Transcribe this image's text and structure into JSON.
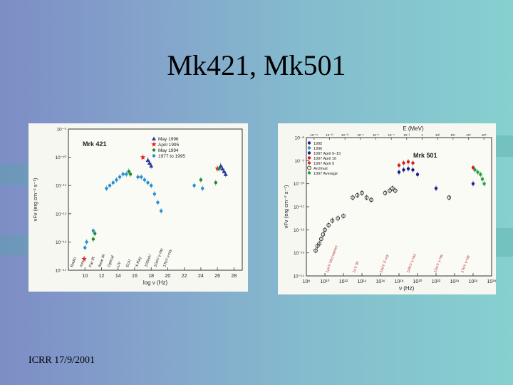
{
  "slide": {
    "title": "Mk421, Mk501",
    "footer": "ICRR 17/9/2001"
  },
  "colors": {
    "background_left": "#7d8dc6",
    "background_right": "#86d0cf",
    "panel_bg": "#f7f7f2",
    "series_1996": "#2a3aa0",
    "series_1995": "#e02020",
    "series_1994": "#1e8a2e",
    "series_1977_1995": "#2a8fd0",
    "series_mk501_1995": "#202090",
    "series_mk501_1996": "#2a8fd0",
    "series_apr_9_15": "#1a1a8a",
    "series_apr_16": "#d02020",
    "series_apr_9": "#d03030",
    "series_archival": "#222222",
    "series_average": "#20a040"
  },
  "chart_data": [
    {
      "type": "scatter",
      "name": "Mrk 421",
      "title": "Mrk 421",
      "xlabel": "log ν (Hz)",
      "ylabel": "νFν (erg cm⁻² s⁻¹)",
      "xlim": [
        8,
        29
      ],
      "ylim": [
        -14,
        -9
      ],
      "x_ticks": [
        "10",
        "12",
        "14",
        "16",
        "18",
        "20",
        "22",
        "24",
        "26",
        "28"
      ],
      "y_ticks": [
        "10⁻⁹",
        "10⁻¹⁰",
        "10⁻¹¹",
        "10⁻¹²",
        "10⁻¹³",
        "10⁻¹⁴"
      ],
      "band_labels": [
        "Radio",
        "mm",
        "Far IR",
        "Near IR",
        "Optical",
        "UV",
        "EUV",
        "X-Ray",
        "100keV",
        "1GeV γ-ray",
        "1TeV γ-ray"
      ],
      "legend": [
        {
          "label": "May 1996",
          "marker": "triangle",
          "color": "#2a3aa0"
        },
        {
          "label": "April 1995",
          "marker": "star",
          "color": "#e02020"
        },
        {
          "label": "May 1994",
          "marker": "circle",
          "color": "#1e8a2e"
        },
        {
          "label": "1977 to 1995",
          "marker": "circle",
          "color": "#2a8fd0"
        }
      ],
      "series": [
        {
          "name": "May 1996",
          "color": "#2a3aa0",
          "marker": "triangle",
          "x": [
            17.6,
            17.8,
            18.0,
            26.4,
            26.6,
            26.8,
            27.0
          ],
          "y": [
            -10.1,
            -10.2,
            -10.3,
            -10.3,
            -10.4,
            -10.5,
            -10.6
          ]
        },
        {
          "name": "April 1995",
          "color": "#e02020",
          "marker": "star",
          "x": [
            9.9,
            17.0,
            26.0
          ],
          "y": [
            -13.6,
            -10.0,
            -10.4
          ]
        },
        {
          "name": "May 1994",
          "color": "#1e8a2e",
          "marker": "circle",
          "x": [
            11.0,
            11.2,
            15.3,
            15.5,
            24.0,
            25.8,
            26.2
          ],
          "y": [
            -12.9,
            -12.7,
            -10.5,
            -10.6,
            -10.8,
            -10.9,
            -10.4
          ]
        },
        {
          "name": "1977 to 1995",
          "color": "#2a8fd0",
          "marker": "circle",
          "x": [
            10.0,
            10.2,
            11.0,
            12.6,
            13.0,
            13.4,
            13.8,
            14.2,
            14.6,
            15.0,
            16.4,
            16.8,
            17.2,
            17.6,
            18.0,
            18.4,
            18.8,
            19.2,
            23.2,
            24.2
          ],
          "y": [
            -13.2,
            -13.0,
            -12.6,
            -11.1,
            -11.0,
            -10.9,
            -10.8,
            -10.7,
            -10.6,
            -10.6,
            -10.7,
            -10.7,
            -10.8,
            -10.9,
            -11.0,
            -11.3,
            -11.6,
            -11.9,
            -11.0,
            -11.1
          ]
        }
      ]
    },
    {
      "type": "scatter",
      "name": "Mrk 501",
      "title": "Mrk 501",
      "top_axis_label": "E (MeV)",
      "top_ticks": [
        "10⁻¹⁴",
        "10⁻¹²",
        "10⁻¹⁰",
        "10⁻⁸",
        "10⁻⁶",
        "10⁻⁴",
        "10⁻²",
        "1",
        "10²",
        "10⁴",
        "10⁶",
        "10⁸"
      ],
      "xlabel": "ν (Hz)",
      "ylabel": "νFν (erg cm⁻² s⁻¹)",
      "xlim": [
        8,
        28
      ],
      "ylim": [
        -14,
        -8
      ],
      "x_ticks": [
        "10⁸",
        "10¹⁰",
        "10¹²",
        "10¹⁴",
        "10¹⁶",
        "10¹⁸",
        "10²⁰",
        "10²²",
        "10²⁴",
        "10²⁶",
        "10²⁸"
      ],
      "y_ticks": [
        "10⁻⁸",
        "10⁻⁹",
        "10⁻¹⁰",
        "10⁻¹¹",
        "10⁻¹²",
        "10⁻¹³",
        "10⁻¹⁴"
      ],
      "band_labels": [
        "1μeV Microwave",
        "1eV IR",
        "1keV X-ray",
        "1MeV γ-ray",
        "1GeV γ-ray",
        "1TeV γ-ray"
      ],
      "legend": [
        {
          "label": "1995",
          "marker": "circle",
          "color": "#202090"
        },
        {
          "label": "1996",
          "marker": "circle",
          "color": "#2a8fd0"
        },
        {
          "label": "1997 April 9–15",
          "marker": "circle",
          "color": "#1a1a8a"
        },
        {
          "label": "1997 April 16",
          "marker": "circle",
          "color": "#d02020"
        },
        {
          "label": "1997 April 9",
          "marker": "circle",
          "color": "#d03030"
        },
        {
          "label": "Archival",
          "marker": "open-circle",
          "color": "#222222"
        },
        {
          "label": "1997 Average",
          "marker": "circle",
          "color": "#20a040"
        }
      ],
      "series": [
        {
          "name": "Archival",
          "color": "#222222",
          "marker": "open-circle",
          "x": [
            9.0,
            9.2,
            9.4,
            9.6,
            9.8,
            10.0,
            10.4,
            10.8,
            11.4,
            12.0,
            13.0,
            13.5,
            14.0,
            14.5,
            15.0,
            16.5,
            17.0,
            17.3,
            17.6,
            23.4
          ],
          "y": [
            -12.9,
            -12.7,
            -12.6,
            -12.4,
            -12.2,
            -12.0,
            -11.8,
            -11.6,
            -11.5,
            -11.4,
            -10.6,
            -10.5,
            -10.4,
            -10.6,
            -10.7,
            -10.4,
            -10.3,
            -10.2,
            -10.3,
            -10.6
          ]
        },
        {
          "name": "1997 April 16",
          "color": "#d02020",
          "marker": "circle",
          "x": [
            18.0,
            18.5,
            19.0,
            19.5,
            26.0
          ],
          "y": [
            -9.2,
            -9.1,
            -9.05,
            -9.1,
            -9.3
          ]
        },
        {
          "name": "1997 April 9–15",
          "color": "#1a1a8a",
          "marker": "circle",
          "x": [
            18.0,
            18.5,
            19.0,
            19.5,
            20.0
          ],
          "y": [
            -9.5,
            -9.4,
            -9.35,
            -9.4,
            -9.6
          ]
        },
        {
          "name": "1995",
          "color": "#202090",
          "marker": "circle",
          "x": [
            22.0,
            26.0
          ],
          "y": [
            -10.2,
            -10.0
          ]
        },
        {
          "name": "1997 Average",
          "color": "#20a040",
          "marker": "circle",
          "x": [
            26.2,
            26.5,
            26.8,
            27.0,
            27.2
          ],
          "y": [
            -9.4,
            -9.5,
            -9.6,
            -9.8,
            -10.0
          ]
        }
      ]
    }
  ]
}
